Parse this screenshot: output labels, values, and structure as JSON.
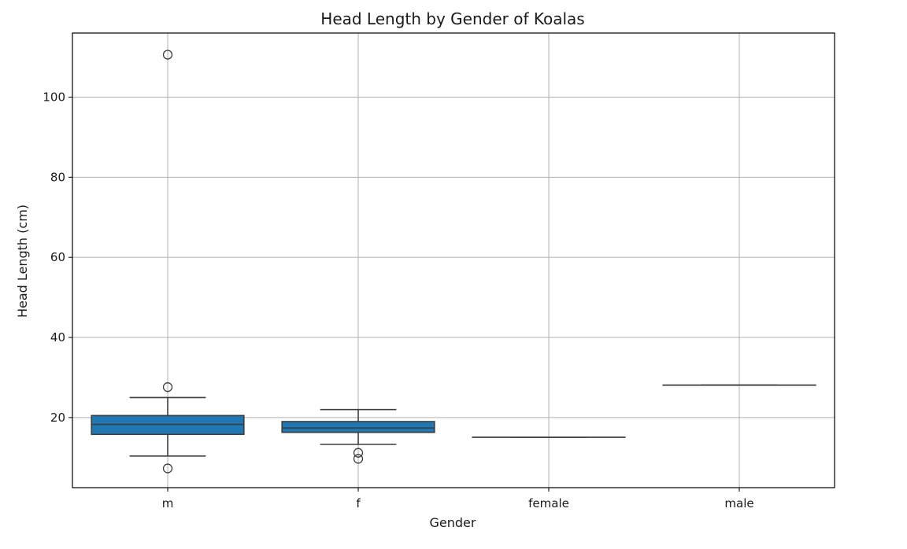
{
  "chart_data": {
    "type": "box",
    "title": "Head Length by Gender of Koalas",
    "xlabel": "Gender",
    "ylabel": "Head Length (cm)",
    "categories": [
      "m",
      "f",
      "female",
      "male"
    ],
    "ylim": [
      2.5,
      116
    ],
    "yticks": [
      20,
      40,
      60,
      80,
      100
    ],
    "grid": true,
    "box_color": "#1f77b4",
    "boxes": [
      {
        "category": "m",
        "whisker_low": 10.4,
        "q1": 15.8,
        "median": 18.3,
        "q3": 20.5,
        "whisker_high": 25.0,
        "outliers": [
          110.6,
          27.6,
          7.3
        ]
      },
      {
        "category": "f",
        "whisker_low": 13.3,
        "q1": 16.3,
        "median": 17.4,
        "q3": 19.0,
        "whisker_high": 22.0,
        "outliers": [
          11.2,
          9.7
        ]
      },
      {
        "category": "female",
        "whisker_low": 15.1,
        "q1": 15.1,
        "median": 15.1,
        "q3": 15.1,
        "whisker_high": 15.1,
        "outliers": []
      },
      {
        "category": "male",
        "whisker_low": 28.1,
        "q1": 28.1,
        "median": 28.1,
        "q3": 28.1,
        "whisker_high": 28.1,
        "outliers": []
      }
    ]
  }
}
